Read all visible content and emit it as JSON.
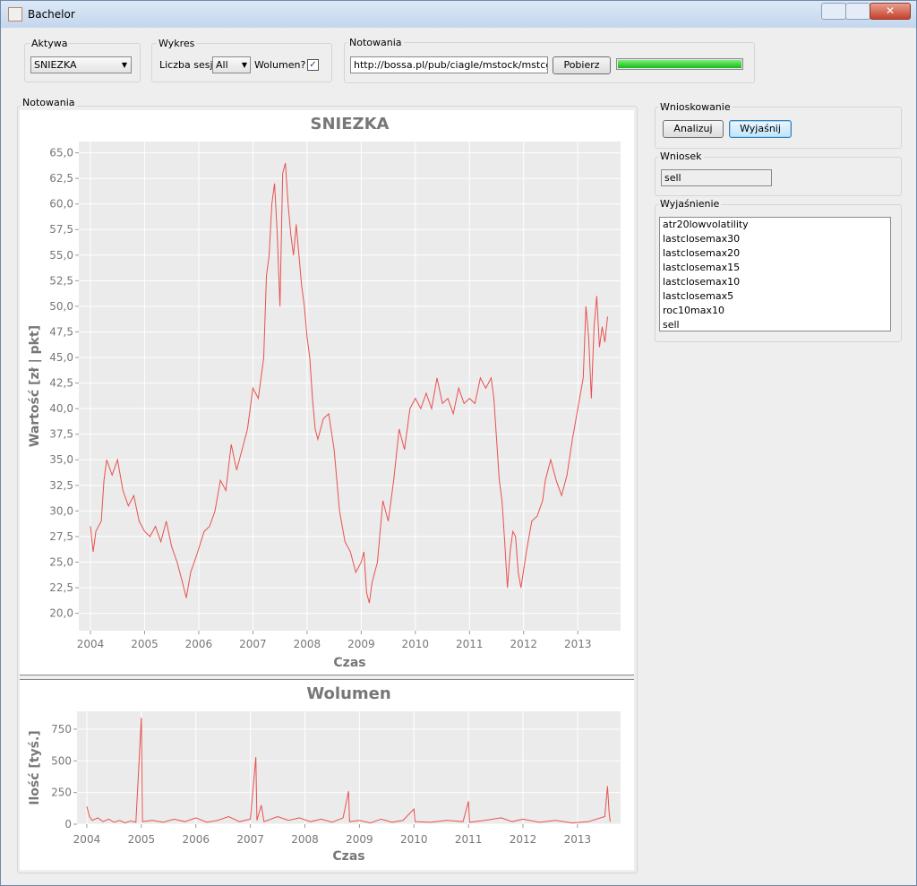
{
  "window": {
    "title": "Bachelor"
  },
  "aktywa": {
    "label": "Aktywa",
    "selected": "SNIEZKA"
  },
  "wykres": {
    "label": "Wykres",
    "sessions_label": "Liczba sesji",
    "sessions_value": "All",
    "volume_label": "Wolumen?"
  },
  "notowania": {
    "label": "Notowania",
    "url": "http://bossa.pl/pub/ciagle/mstock/mstcgl.zip",
    "button": "Pobierz"
  },
  "charts_panel": {
    "label": "Notowania"
  },
  "wnioskowanie": {
    "label": "Wnioskowanie",
    "buttons": [
      "Analizuj",
      "Wyjaśnij"
    ]
  },
  "wniosek": {
    "label": "Wniosek",
    "value": "sell"
  },
  "wyjasnienie": {
    "label": "Wyjaśnienie",
    "items": [
      "atr20lowvolatility",
      "lastclosemax30",
      "lastclosemax20",
      "lastclosemax15",
      "lastclosemax10",
      "lastclosemax5",
      "roc10max10",
      "sell"
    ]
  },
  "chart_data": [
    {
      "type": "line",
      "title": "SNIEZKA",
      "x_label": "Czas",
      "y_label": "Wartość [zł | pkt]",
      "color": "#e8514f",
      "grid": true,
      "x": [
        2004.0,
        2004.05,
        2004.1,
        2004.2,
        2004.25,
        2004.3,
        2004.4,
        2004.5,
        2004.6,
        2004.7,
        2004.8,
        2004.9,
        2005.0,
        2005.1,
        2005.2,
        2005.3,
        2005.4,
        2005.5,
        2005.6,
        2005.7,
        2005.77,
        2005.85,
        2005.95,
        2006.1,
        2006.2,
        2006.3,
        2006.4,
        2006.5,
        2006.6,
        2006.7,
        2006.8,
        2006.9,
        2007.0,
        2007.1,
        2007.2,
        2007.25,
        2007.3,
        2007.35,
        2007.4,
        2007.45,
        2007.5,
        2007.55,
        2007.6,
        2007.65,
        2007.7,
        2007.75,
        2007.8,
        2007.9,
        2007.95,
        2008.0,
        2008.05,
        2008.1,
        2008.15,
        2008.2,
        2008.3,
        2008.4,
        2008.5,
        2008.6,
        2008.7,
        2008.8,
        2008.9,
        2009.0,
        2009.05,
        2009.1,
        2009.15,
        2009.2,
        2009.3,
        2009.4,
        2009.5,
        2009.6,
        2009.7,
        2009.8,
        2009.9,
        2010.0,
        2010.1,
        2010.2,
        2010.3,
        2010.4,
        2010.5,
        2010.6,
        2010.7,
        2010.8,
        2010.9,
        2011.0,
        2011.1,
        2011.2,
        2011.3,
        2011.4,
        2011.45,
        2011.5,
        2011.55,
        2011.6,
        2011.65,
        2011.7,
        2011.75,
        2011.8,
        2011.85,
        2011.9,
        2011.95,
        2012.05,
        2012.15,
        2012.25,
        2012.35,
        2012.4,
        2012.5,
        2012.6,
        2012.7,
        2012.8,
        2012.9,
        2013.0,
        2013.1,
        2013.15,
        2013.2,
        2013.25,
        2013.3,
        2013.35,
        2013.4,
        2013.45,
        2013.5,
        2013.55
      ],
      "values": [
        28.5,
        26,
        28,
        29,
        33,
        35,
        33.5,
        35,
        32,
        30.5,
        31.5,
        29,
        28,
        27.5,
        28.5,
        27,
        29,
        26.5,
        25,
        23,
        21.5,
        24,
        25.5,
        28,
        28.5,
        30,
        33,
        32,
        36.5,
        34,
        36,
        38,
        42,
        41,
        45,
        53,
        55,
        60,
        62,
        57,
        50,
        63,
        64,
        60,
        57,
        55,
        58,
        52,
        50,
        47,
        45,
        41,
        38,
        37,
        39,
        39.5,
        36,
        30,
        27,
        26,
        24,
        25,
        26,
        22,
        21,
        23,
        25,
        31,
        29,
        33,
        38,
        36,
        40,
        41,
        40,
        41.5,
        40,
        43,
        40.5,
        41,
        39.5,
        42,
        40.5,
        41,
        40.5,
        43,
        42,
        43,
        41,
        37,
        33,
        31,
        27,
        22.5,
        26,
        28,
        27.5,
        24,
        22.5,
        26,
        29,
        29.5,
        31,
        33,
        35,
        33,
        31.5,
        33.5,
        37,
        40,
        43,
        50,
        47,
        41,
        48,
        51,
        46,
        48,
        46.5,
        49
      ],
      "xlim": [
        2003.785,
        2013.79
      ],
      "xticks": [
        2004,
        2005,
        2006,
        2007,
        2008,
        2009,
        2010,
        2011,
        2012,
        2013
      ],
      "ylim": [
        18.3,
        66.1
      ],
      "yticks": [
        {
          "value": 20,
          "label": "20,0"
        },
        {
          "value": 22.5,
          "label": "22,5"
        },
        {
          "value": 25,
          "label": "25,0"
        },
        {
          "value": 27.5,
          "label": "27,5"
        },
        {
          "value": 30,
          "label": "30,0"
        },
        {
          "value": 32.5,
          "label": "32,5"
        },
        {
          "value": 35,
          "label": "35,0"
        },
        {
          "value": 37.5,
          "label": "37,5"
        },
        {
          "value": 40,
          "label": "40,0"
        },
        {
          "value": 42.5,
          "label": "42,5"
        },
        {
          "value": 45,
          "label": "45,0"
        },
        {
          "value": 47.5,
          "label": "47,5"
        },
        {
          "value": 50,
          "label": "50,0"
        },
        {
          "value": 52.5,
          "label": "52,5"
        },
        {
          "value": 55,
          "label": "55,0"
        },
        {
          "value": 57.5,
          "label": "57,5"
        },
        {
          "value": 60,
          "label": "60,0"
        },
        {
          "value": 62.5,
          "label": "62,5"
        },
        {
          "value": 65,
          "label": "65,0"
        }
      ]
    },
    {
      "type": "line",
      "title": "Wolumen",
      "x_label": "Czas",
      "y_label": "Ilość [tyś.]",
      "color": "#e8514f",
      "grid": true,
      "x": [
        2004.0,
        2004.05,
        2004.1,
        2004.2,
        2004.3,
        2004.4,
        2004.5,
        2004.6,
        2004.7,
        2004.8,
        2004.9,
        2005.0,
        2005.02,
        2005.2,
        2005.4,
        2005.6,
        2005.8,
        2006.0,
        2006.2,
        2006.4,
        2006.6,
        2006.8,
        2007.0,
        2007.1,
        2007.12,
        2007.2,
        2007.25,
        2007.5,
        2007.7,
        2007.9,
        2008.1,
        2008.3,
        2008.5,
        2008.7,
        2008.8,
        2008.82,
        2009.0,
        2009.2,
        2009.4,
        2009.6,
        2009.8,
        2010.0,
        2010.02,
        2010.3,
        2010.6,
        2010.9,
        2011.0,
        2011.02,
        2011.3,
        2011.6,
        2011.8,
        2012.0,
        2012.3,
        2012.6,
        2012.9,
        2013.2,
        2013.5,
        2013.55,
        2013.58,
        2013.6
      ],
      "values": [
        140,
        60,
        30,
        50,
        20,
        40,
        15,
        30,
        10,
        25,
        15,
        840,
        20,
        30,
        15,
        40,
        20,
        50,
        15,
        30,
        60,
        20,
        40,
        530,
        30,
        150,
        20,
        60,
        30,
        50,
        20,
        40,
        15,
        50,
        260,
        20,
        30,
        10,
        40,
        15,
        30,
        120,
        20,
        15,
        30,
        20,
        180,
        15,
        30,
        50,
        20,
        40,
        15,
        30,
        10,
        20,
        60,
        300,
        90,
        20
      ],
      "xlim": [
        2003.82,
        2013.79
      ],
      "xticks": [
        2004,
        2005,
        2006,
        2007,
        2008,
        2009,
        2010,
        2011,
        2012,
        2013
      ],
      "ylim": [
        0,
        891
      ],
      "yticks": [
        0,
        250,
        500,
        750
      ]
    }
  ]
}
